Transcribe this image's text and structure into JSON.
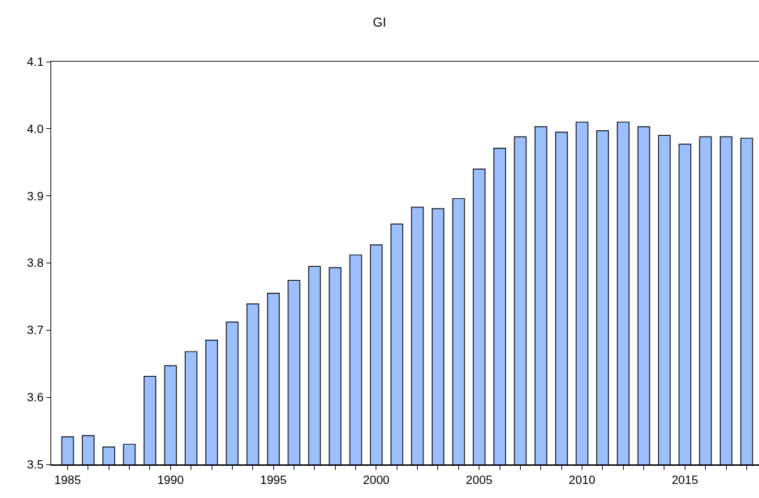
{
  "chart_data": {
    "type": "bar",
    "title": "GI",
    "x": [
      1985,
      1986,
      1987,
      1988,
      1989,
      1990,
      1991,
      1992,
      1993,
      1994,
      1995,
      1996,
      1997,
      1998,
      1999,
      2000,
      2001,
      2002,
      2003,
      2004,
      2005,
      2006,
      2007,
      2008,
      2009,
      2010,
      2011,
      2012,
      2013,
      2014,
      2015,
      2016,
      2017,
      2018
    ],
    "values": [
      3.541,
      3.543,
      3.526,
      3.53,
      3.631,
      3.647,
      3.668,
      3.685,
      3.712,
      3.739,
      3.755,
      3.774,
      3.795,
      3.793,
      3.812,
      3.827,
      3.858,
      3.883,
      3.881,
      3.896,
      3.94,
      3.971,
      3.988,
      4.003,
      3.995,
      4.01,
      3.997,
      4.01,
      4.003,
      3.99,
      3.977,
      3.988,
      3.988,
      3.986
    ],
    "color": "#9cbfff",
    "xlim": [
      1984.2,
      2018.6
    ],
    "xticks": [
      1985,
      {
        "value": 1986,
        "label": null
      },
      {
        "value": 1987,
        "label": null
      },
      {
        "value": 1988,
        "label": null
      },
      {
        "value": 1989,
        "label": null
      },
      1990,
      {
        "value": 1991,
        "label": null
      },
      {
        "value": 1992,
        "label": null
      },
      {
        "value": 1993,
        "label": null
      },
      {
        "value": 1994,
        "label": null
      },
      1995,
      {
        "value": 1996,
        "label": null
      },
      {
        "value": 1997,
        "label": null
      },
      {
        "value": 1998,
        "label": null
      },
      {
        "value": 1999,
        "label": null
      },
      2000,
      {
        "value": 2001,
        "label": null
      },
      {
        "value": 2002,
        "label": null
      },
      {
        "value": 2003,
        "label": null
      },
      {
        "value": 2004,
        "label": null
      },
      2005,
      {
        "value": 2006,
        "label": null
      },
      {
        "value": 2007,
        "label": null
      },
      {
        "value": 2008,
        "label": null
      },
      {
        "value": 2009,
        "label": null
      },
      2010,
      {
        "value": 2011,
        "label": null
      },
      {
        "value": 2012,
        "label": null
      },
      {
        "value": 2013,
        "label": null
      },
      {
        "value": 2014,
        "label": null
      },
      2015,
      {
        "value": 2016,
        "label": null
      },
      {
        "value": 2017,
        "label": null
      },
      {
        "value": 2018,
        "label": null
      }
    ],
    "ylim": [
      3.5,
      4.1
    ],
    "yticks": [
      3.5,
      3.6,
      3.7,
      3.8,
      3.9,
      {
        "value": 4,
        "label": "4.0"
      },
      4.1
    ]
  }
}
